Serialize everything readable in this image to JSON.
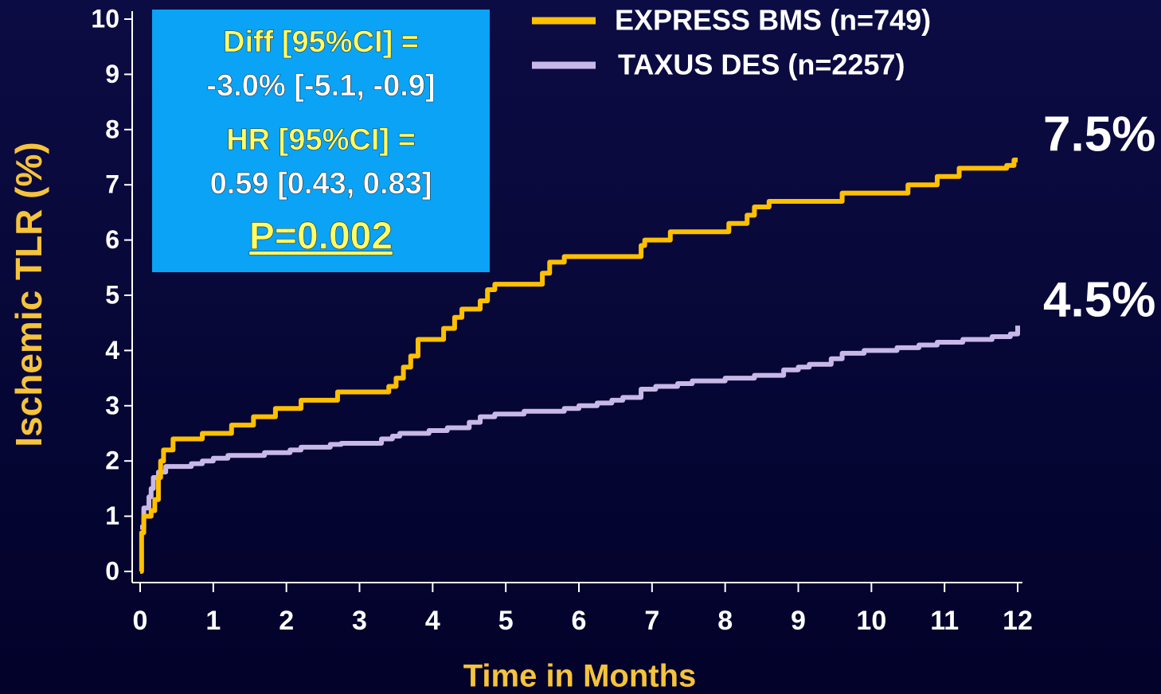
{
  "chart_data": {
    "type": "line",
    "step": true,
    "xlabel": "Time in Months",
    "ylabel": "Ischemic TLR (%)",
    "xlim": [
      0,
      12
    ],
    "xticks": [
      0,
      1,
      2,
      3,
      4,
      5,
      6,
      7,
      8,
      9,
      10,
      11,
      12
    ],
    "ylim": [
      0,
      10
    ],
    "yticks": [
      0,
      1,
      2,
      3,
      4,
      5,
      6,
      7,
      8,
      9,
      10
    ],
    "legend": "top-right",
    "annotation_box": {
      "color": "#0aa3f5",
      "lines": [
        {
          "text": "Diff [95%CI] =",
          "color": "#ffff66"
        },
        {
          "text": "-3.0% [-5.1, -0.9]",
          "color": "#ffffff"
        },
        {
          "text": "HR [95%CI] =",
          "color": "#ffff66"
        },
        {
          "text": "0.59 [0.43, 0.83]",
          "color": "#ffffff"
        },
        {
          "text": "P=0.002",
          "color": "#ffff66",
          "underline": true
        }
      ]
    },
    "series": [
      {
        "name": "TAXUS DES (n=2257)",
        "color": "#c8b8e8",
        "end_label": "4.5%",
        "x": [
          0,
          0.05,
          0.12,
          0.15,
          0.18,
          0.25,
          0.35,
          0.7,
          0.85,
          1.0,
          1.2,
          1.7,
          2.05,
          2.2,
          2.6,
          2.75,
          3.3,
          3.45,
          3.55,
          3.95,
          4.2,
          4.5,
          4.65,
          4.85,
          5.25,
          5.8,
          6.0,
          6.25,
          6.45,
          6.6,
          6.85,
          7.05,
          7.35,
          7.55,
          8.0,
          8.4,
          8.8,
          9.0,
          9.15,
          9.45,
          9.6,
          9.9,
          10.35,
          10.65,
          10.9,
          11.25,
          11.65,
          11.9,
          12.0
        ],
        "values": [
          0.8,
          1.15,
          1.35,
          1.5,
          1.7,
          1.8,
          1.9,
          1.95,
          2.0,
          2.05,
          2.1,
          2.15,
          2.2,
          2.25,
          2.3,
          2.32,
          2.4,
          2.45,
          2.5,
          2.55,
          2.6,
          2.7,
          2.8,
          2.85,
          2.9,
          2.95,
          3.0,
          3.05,
          3.1,
          3.15,
          3.3,
          3.35,
          3.4,
          3.45,
          3.5,
          3.55,
          3.65,
          3.7,
          3.75,
          3.85,
          3.95,
          4.0,
          4.05,
          4.1,
          4.15,
          4.2,
          4.25,
          4.3,
          4.45
        ]
      },
      {
        "name": "EXPRESS BMS (n=749)",
        "color": "#ffc000",
        "end_label": "7.5%",
        "x": [
          0,
          0.02,
          0.05,
          0.15,
          0.2,
          0.25,
          0.28,
          0.32,
          0.45,
          0.85,
          1.25,
          1.55,
          1.85,
          2.2,
          2.7,
          3.4,
          3.5,
          3.6,
          3.7,
          3.8,
          4.15,
          4.3,
          4.4,
          4.65,
          4.75,
          4.85,
          5.5,
          5.6,
          5.8,
          6.85,
          6.9,
          7.25,
          8.05,
          8.3,
          8.4,
          8.6,
          9.6,
          10.5,
          10.9,
          11.2,
          11.85,
          11.95,
          12.0
        ],
        "values": [
          0,
          0.7,
          1.0,
          1.1,
          1.3,
          1.7,
          2.0,
          2.2,
          2.4,
          2.5,
          2.65,
          2.8,
          2.95,
          3.1,
          3.25,
          3.35,
          3.5,
          3.7,
          3.9,
          4.2,
          4.4,
          4.6,
          4.75,
          4.9,
          5.1,
          5.2,
          5.4,
          5.6,
          5.7,
          5.9,
          6.0,
          6.15,
          6.3,
          6.45,
          6.6,
          6.7,
          6.85,
          7.0,
          7.15,
          7.3,
          7.35,
          7.45,
          7.45
        ]
      }
    ]
  }
}
